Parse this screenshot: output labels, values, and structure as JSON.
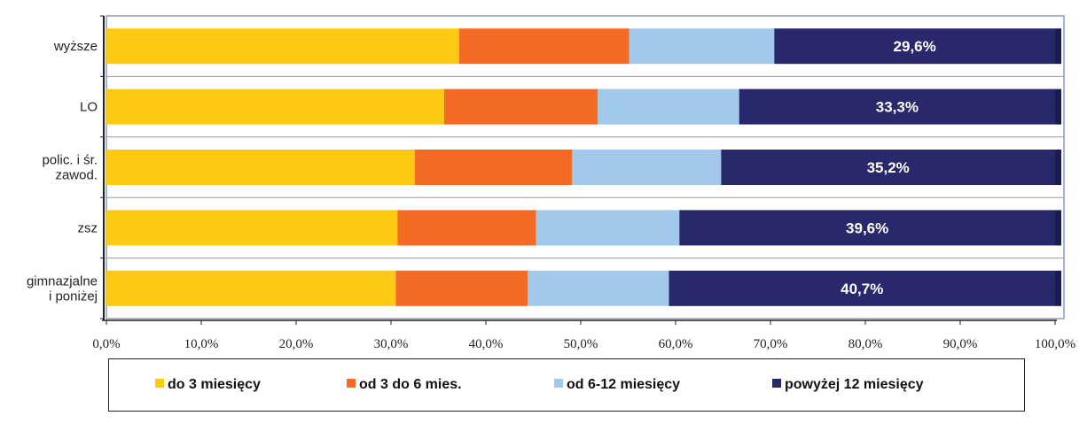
{
  "chart_data": {
    "type": "bar",
    "orientation": "horizontal",
    "stacked": true,
    "categories": [
      [
        "wyższe"
      ],
      [
        "LO"
      ],
      [
        "polic. i śr.",
        "zawod."
      ],
      [
        "zsz"
      ],
      [
        "gimnazjalne",
        "i poniżej"
      ]
    ],
    "series": [
      {
        "name": "do 3 miesięcy",
        "color": "#FCC913",
        "values": [
          37.2,
          35.6,
          32.5,
          30.7,
          30.5
        ]
      },
      {
        "name": "od 3 do 6 mies.",
        "color": "#F36B24",
        "values": [
          17.9,
          16.2,
          16.6,
          14.6,
          13.9
        ]
      },
      {
        "name": "od 6-12 miesięcy",
        "color": "#A2C9EA",
        "values": [
          15.3,
          14.9,
          15.7,
          15.1,
          14.9
        ]
      },
      {
        "name": "powyżej 12 miesięcy",
        "color": "#28296D",
        "values": [
          29.6,
          33.3,
          35.2,
          39.6,
          40.7
        ]
      }
    ],
    "data_labels": [
      "29,6%",
      "33,3%",
      "35,2%",
      "39,6%",
      "40,7%"
    ],
    "x_ticks": [
      "0,0%",
      "10,0%",
      "20,0%",
      "30,0%",
      "40,0%",
      "50,0%",
      "60,0%",
      "70,0%",
      "80,0%",
      "90,0%",
      "100,0%"
    ],
    "xlim": [
      0,
      100
    ],
    "grid": true,
    "legend_position": "bottom"
  }
}
